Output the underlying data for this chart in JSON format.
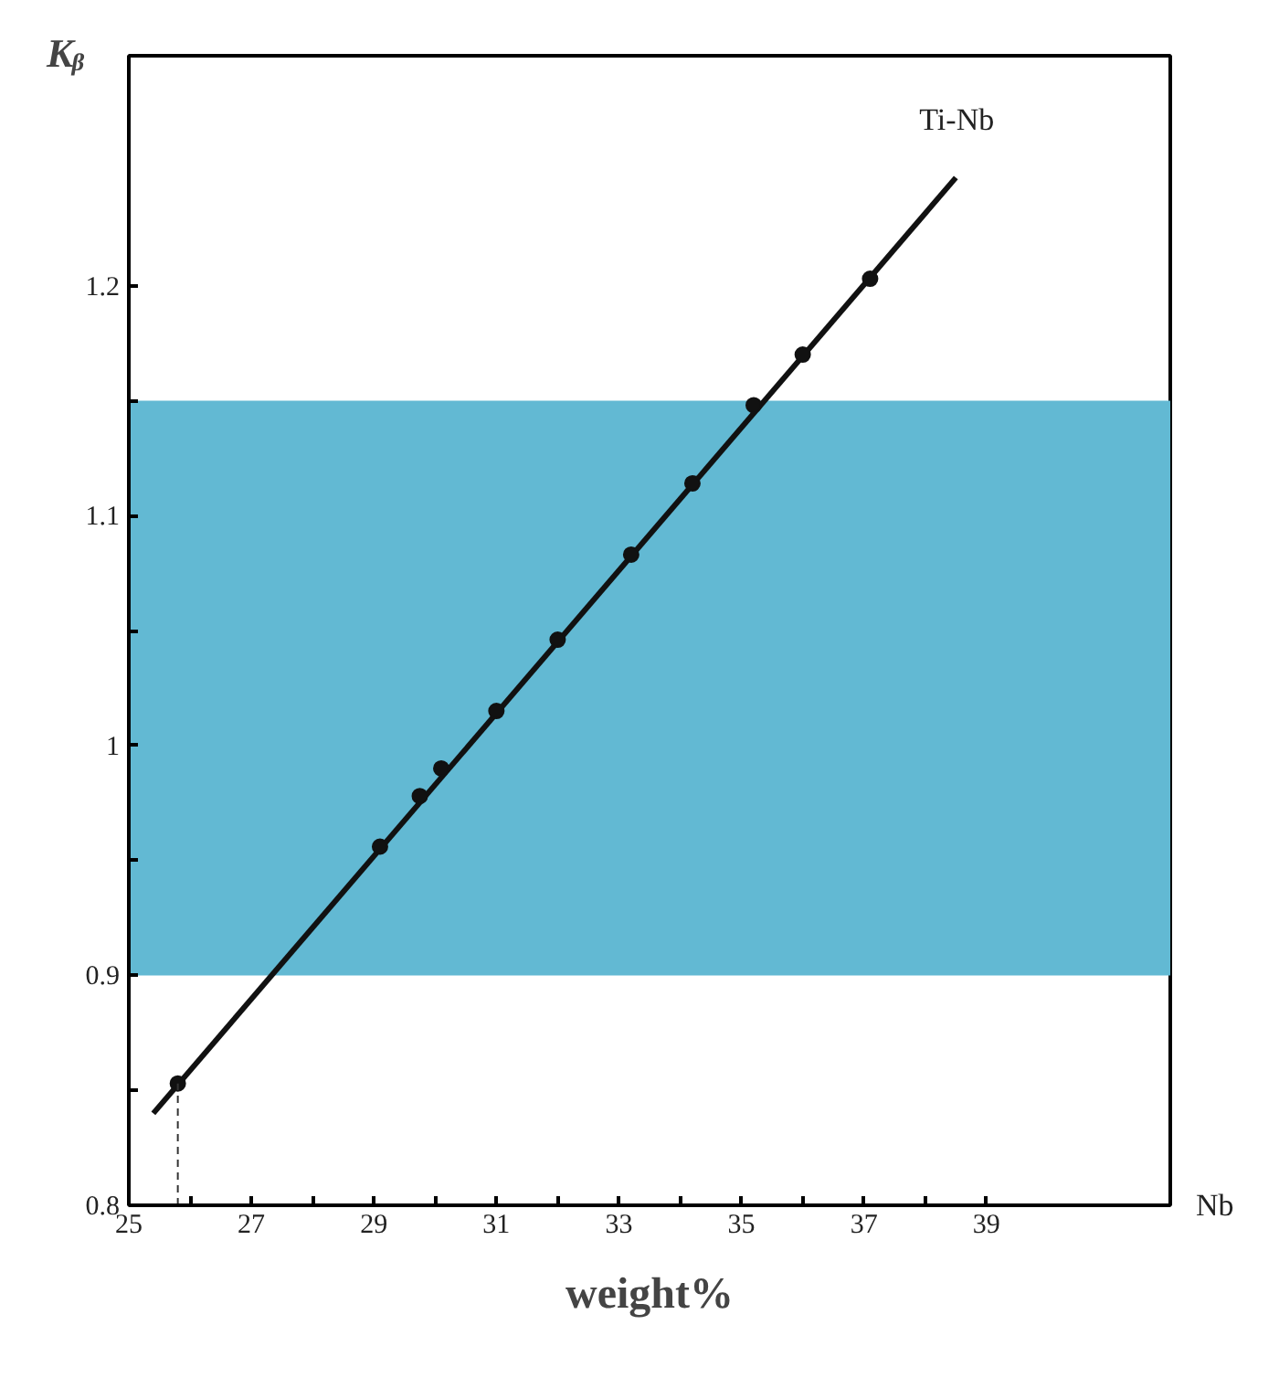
{
  "chart_data": {
    "type": "line",
    "xlabel": "weight%",
    "ylabel": "Kᵦ",
    "xlim": [
      25,
      42
    ],
    "ylim": [
      0.8,
      1.3
    ],
    "xticks": [
      25,
      {
        "value": 26,
        "label": null
      },
      27,
      {
        "value": 28,
        "label": null
      },
      29,
      {
        "value": 30,
        "label": null
      },
      31,
      {
        "value": 32,
        "label": null
      },
      33,
      {
        "value": 34,
        "label": null
      },
      35,
      {
        "value": 36,
        "label": null
      },
      37,
      {
        "value": 38,
        "label": null
      },
      39
    ],
    "yticks": [
      0.8,
      {
        "value": 0.85,
        "label": null
      },
      0.9,
      {
        "value": 0.95,
        "label": null
      },
      1.0,
      {
        "value": 1.05,
        "label": null
      },
      1.1,
      {
        "value": 1.15,
        "label": null
      },
      1.2
    ],
    "series": [
      {
        "name": "Ti-Nb",
        "color": "#111111",
        "x": [
          25.4,
          38.5
        ],
        "values": [
          0.84,
          1.247
        ]
      },
      {
        "type": "scatter",
        "marker": "circle",
        "color": "#111111",
        "x": [
          25.8,
          29.1,
          29.75,
          30.1,
          31.0,
          32.0,
          33.2,
          34.2,
          35.2,
          36.0,
          37.1
        ],
        "values": [
          0.853,
          0.956,
          0.978,
          0.99,
          1.015,
          1.046,
          1.083,
          1.114,
          1.148,
          1.17,
          1.203
        ]
      },
      {
        "type": "line",
        "line_style": "dashed",
        "color": "#333333",
        "x": [
          25.8,
          25.8
        ],
        "values": [
          0.8,
          0.853
        ]
      }
    ],
    "bands": [
      {
        "axis": "y",
        "from": 0.9,
        "to": 1.15,
        "color": "#62b9d3"
      }
    ],
    "annotations": [
      "Nb"
    ],
    "grid": false
  }
}
